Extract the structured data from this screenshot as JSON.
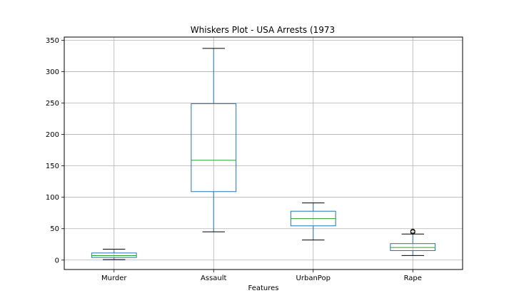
{
  "chart_data": {
    "type": "box",
    "title": "Whiskers Plot - USA Arrests (1973",
    "xlabel": "Features",
    "ylabel": "",
    "ylim": [
      -15,
      355
    ],
    "yticks": [
      0,
      50,
      100,
      150,
      200,
      250,
      300,
      350
    ],
    "grid": true,
    "legend": "none",
    "categories": [
      "Murder",
      "Assault",
      "UrbanPop",
      "Rape"
    ],
    "boxes": [
      {
        "name": "Murder",
        "whisker_low": 0.8,
        "q1": 4.1,
        "median": 7.2,
        "q3": 11.3,
        "whisker_high": 17.4,
        "outliers": []
      },
      {
        "name": "Assault",
        "whisker_low": 45,
        "q1": 109,
        "median": 159,
        "q3": 249,
        "whisker_high": 337,
        "outliers": []
      },
      {
        "name": "UrbanPop",
        "whisker_low": 32,
        "q1": 54.5,
        "median": 66,
        "q3": 77.8,
        "whisker_high": 91,
        "outliers": []
      },
      {
        "name": "Rape",
        "whisker_low": 7.3,
        "q1": 15.1,
        "median": 20.1,
        "q3": 26.2,
        "whisker_high": 41.5,
        "outliers": [
          44.5,
          46.0
        ]
      }
    ],
    "colors": {
      "box": "#1f77b4",
      "median": "#2ca02c",
      "whisker": "#1f77b4",
      "cap": "#000000",
      "grid": "#b0b0b0",
      "outlier": "#000000"
    }
  }
}
